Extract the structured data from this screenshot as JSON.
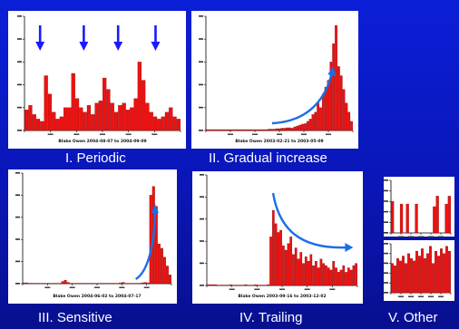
{
  "captions": {
    "periodic": "I. Periodic",
    "gradual": "II. Gradual increase",
    "sensitive": "III. Sensitive",
    "trailing": "IV. Trailing",
    "other": "V. Other"
  },
  "colors": {
    "bar": "#ee1111",
    "bar_edge": "#7a0000",
    "down_arrow": "#1a1aff",
    "curve_arrow": "#1a6fe8"
  },
  "chart_data": [
    {
      "id": "periodic",
      "type": "bar",
      "xlabel": "Blake Owen 2004-08-07 to 2004-09-09",
      "ylim": [
        0,
        250
      ],
      "annotations": [
        "down-arrow",
        "down-arrow",
        "down-arrow",
        "down-arrow"
      ],
      "values": [
        45,
        55,
        35,
        25,
        20,
        120,
        80,
        40,
        25,
        30,
        50,
        50,
        125,
        70,
        50,
        40,
        55,
        35,
        60,
        65,
        115,
        90,
        60,
        40,
        55,
        60,
        45,
        50,
        70,
        150,
        110,
        60,
        40,
        30,
        25,
        30,
        40,
        50,
        30,
        25
      ]
    },
    {
      "id": "gradual",
      "type": "bar",
      "xlabel": "Blake Owen 2003-02-21 to 2003-05-09",
      "ylim": [
        0,
        250
      ],
      "annotations": [
        "curved-arrow-up"
      ],
      "values": [
        2,
        2,
        2,
        2,
        2,
        2,
        2,
        2,
        2,
        2,
        2,
        2,
        2,
        2,
        2,
        2,
        2,
        2,
        2,
        2,
        2,
        2,
        2,
        2,
        3,
        3,
        3,
        4,
        4,
        5,
        5,
        6,
        6,
        5,
        8,
        10,
        12,
        14,
        15,
        20,
        25,
        35,
        40,
        60,
        50,
        80,
        95,
        110,
        150,
        190,
        230,
        140,
        120,
        90,
        60,
        40,
        20
      ]
    },
    {
      "id": "sensitive",
      "type": "bar",
      "xlabel": "Blake Owen 2004-06-02 to 2004-07-17",
      "ylim": [
        0,
        250
      ],
      "annotations": [
        "curved-arrow-up"
      ],
      "values": [
        2,
        2,
        1,
        1,
        1,
        1,
        1,
        1,
        1,
        1,
        1,
        1,
        1,
        1,
        5,
        8,
        3,
        1,
        1,
        1,
        1,
        1,
        1,
        1,
        1,
        1,
        1,
        1,
        1,
        1,
        1,
        1,
        1,
        1,
        1,
        2,
        3,
        1,
        1,
        1,
        1,
        1,
        1,
        2,
        3,
        2,
        200,
        220,
        175,
        90,
        80,
        60,
        40,
        20
      ]
    },
    {
      "id": "trailing",
      "type": "bar",
      "xlabel": "Blake Owen 2003-09-16 to 2003-12-02",
      "ylim": [
        0,
        250
      ],
      "annotations": [
        "curved-arrow-down"
      ],
      "values": [
        2,
        2,
        2,
        2,
        1,
        1,
        1,
        1,
        1,
        2,
        1,
        1,
        1,
        1,
        1,
        2,
        1,
        1,
        1,
        2,
        1,
        1,
        1,
        1,
        2,
        110,
        170,
        140,
        120,
        125,
        90,
        80,
        95,
        110,
        70,
        85,
        60,
        75,
        50,
        65,
        55,
        70,
        45,
        55,
        40,
        60,
        50,
        45,
        40,
        35,
        55,
        40,
        30,
        35,
        45,
        30,
        40,
        35,
        45,
        50
      ]
    },
    {
      "id": "other-top",
      "type": "bar",
      "ylim": [
        0,
        100
      ],
      "values": [
        60,
        0,
        0,
        55,
        0,
        55,
        0,
        0,
        55,
        0,
        0,
        0,
        0,
        0,
        50,
        70,
        0,
        0,
        55,
        70
      ]
    },
    {
      "id": "other-bottom",
      "type": "bar",
      "ylim": [
        0,
        100
      ],
      "values": [
        60,
        55,
        70,
        65,
        75,
        60,
        80,
        70,
        65,
        85,
        75,
        90,
        70,
        80,
        95,
        60,
        85,
        75,
        90,
        80,
        95,
        85
      ]
    }
  ]
}
